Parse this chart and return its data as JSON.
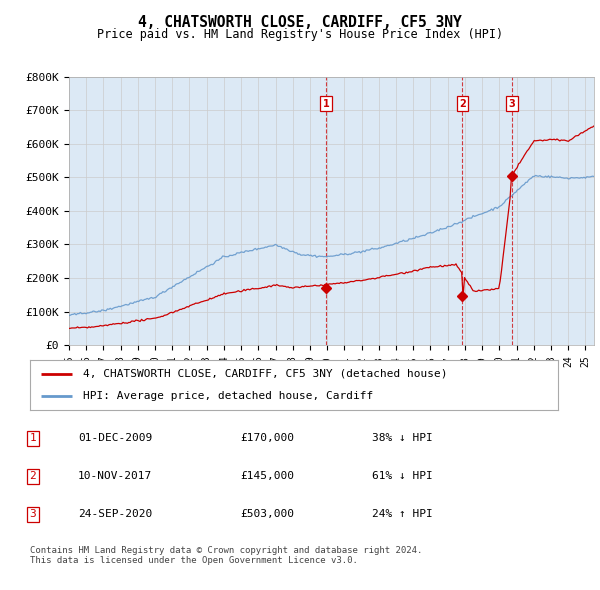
{
  "title": "4, CHATSWORTH CLOSE, CARDIFF, CF5 3NY",
  "subtitle": "Price paid vs. HM Land Registry's House Price Index (HPI)",
  "ylim": [
    0,
    800000
  ],
  "yticks": [
    0,
    100000,
    200000,
    300000,
    400000,
    500000,
    600000,
    700000,
    800000
  ],
  "ytick_labels": [
    "£0",
    "£100K",
    "£200K",
    "£300K",
    "£400K",
    "£500K",
    "£600K",
    "£700K",
    "£800K"
  ],
  "bg_color": "#dce9f5",
  "line1_color": "#cc0000",
  "line2_color": "#6699cc",
  "transactions": [
    {
      "date": 2009.92,
      "price": 170000,
      "label": "1"
    },
    {
      "date": 2017.86,
      "price": 145000,
      "label": "2"
    },
    {
      "date": 2020.73,
      "price": 503000,
      "label": "3"
    }
  ],
  "transaction_table": [
    {
      "num": "1",
      "date": "01-DEC-2009",
      "price": "£170,000",
      "change": "38% ↓ HPI"
    },
    {
      "num": "2",
      "date": "10-NOV-2017",
      "price": "£145,000",
      "change": "61% ↓ HPI"
    },
    {
      "num": "3",
      "date": "24-SEP-2020",
      "price": "£503,000",
      "change": "24% ↑ HPI"
    }
  ],
  "legend_line1": "4, CHATSWORTH CLOSE, CARDIFF, CF5 3NY (detached house)",
  "legend_line2": "HPI: Average price, detached house, Cardiff",
  "footer": "Contains HM Land Registry data © Crown copyright and database right 2024.\nThis data is licensed under the Open Government Licence v3.0.",
  "xstart": 1995,
  "xend": 2025.5
}
